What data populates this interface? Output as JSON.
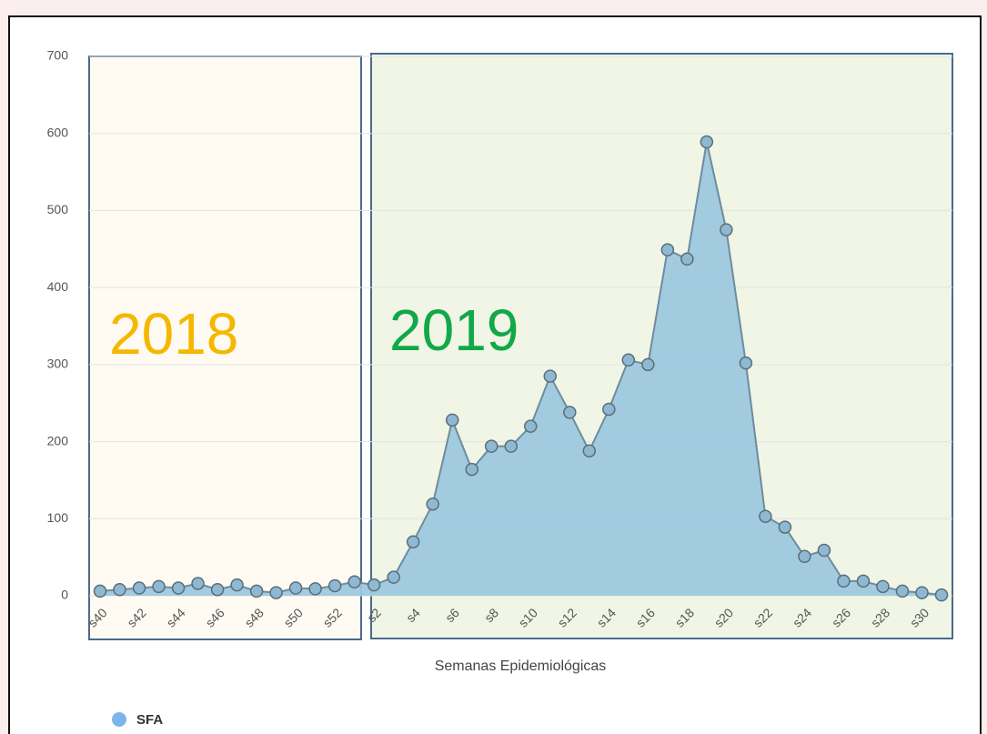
{
  "chart_data": {
    "type": "area",
    "x_label": "Semanas Epidemiológicas",
    "categories": [
      "s40",
      null,
      "s42",
      null,
      "s44",
      null,
      "s46",
      null,
      "s48",
      null,
      "s50",
      null,
      "s52",
      null,
      "s2",
      null,
      "s4",
      null,
      "s6",
      null,
      "s8",
      null,
      "s10",
      null,
      "s12",
      null,
      "s14",
      null,
      "s16",
      null,
      "s18",
      null,
      "s20",
      null,
      "s22",
      null,
      "s24",
      null,
      "s26",
      null,
      "s28",
      null,
      "s30",
      null
    ],
    "series": [
      {
        "name": "SFA",
        "color": "#9ec8df",
        "values": [
          6,
          8,
          10,
          12,
          10,
          16,
          8,
          14,
          6,
          4,
          10,
          9,
          13,
          18,
          14,
          24,
          70,
          119,
          228,
          164,
          194,
          194,
          220,
          285,
          238,
          188,
          242,
          306,
          300,
          449,
          437,
          589,
          475,
          302,
          103,
          89,
          51,
          59,
          19,
          19,
          12,
          6,
          4,
          1
        ]
      }
    ],
    "ylim": [
      0,
      700
    ],
    "yticks": [
      0,
      100,
      200,
      300,
      400,
      500,
      600,
      700
    ],
    "grid": true,
    "annotations": [
      "2018",
      "2019"
    ]
  }
}
